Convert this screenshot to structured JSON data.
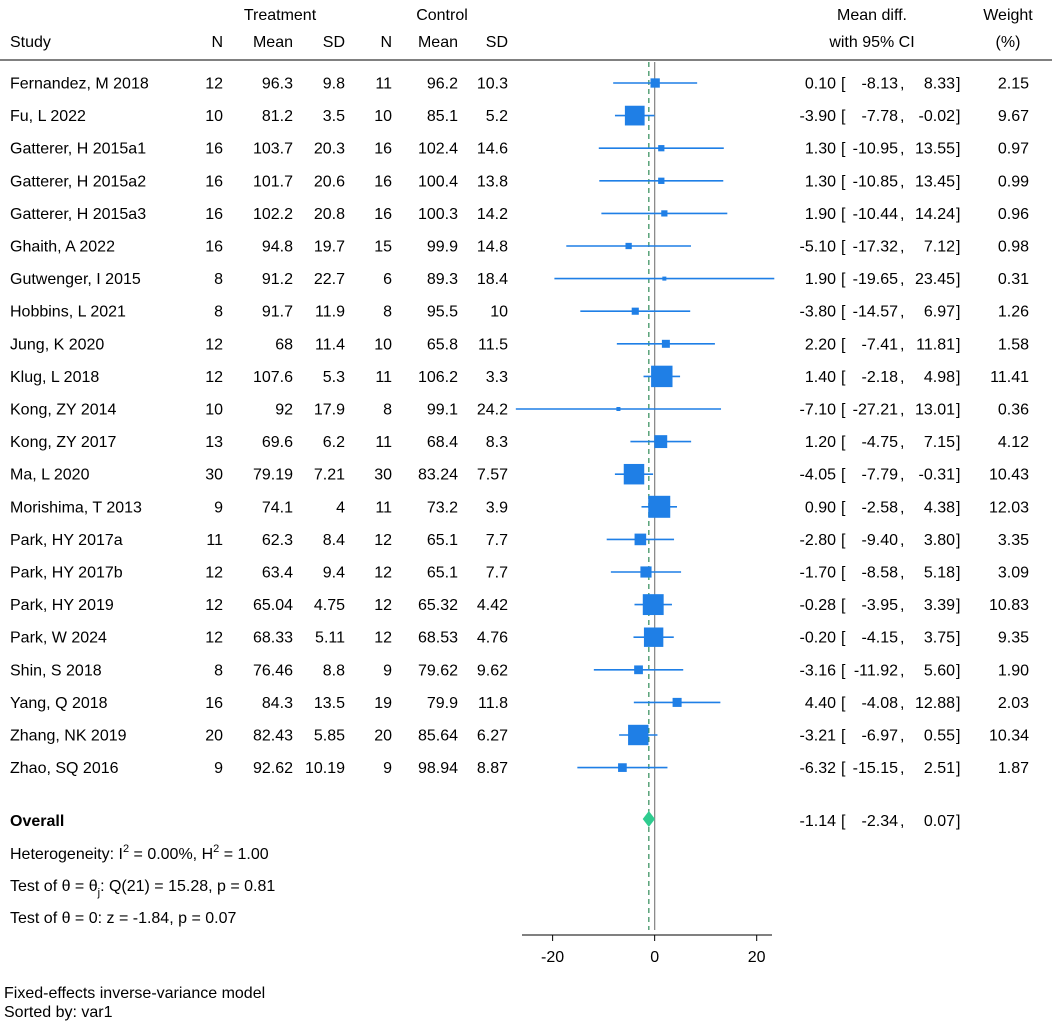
{
  "headers": {
    "treatment": "Treatment",
    "control": "Control",
    "study": "Study",
    "n": "N",
    "mean": "Mean",
    "sd": "SD",
    "effect_line1": "Mean diff.",
    "effect_line2": "with 95% CI",
    "weight_line1": "Weight",
    "weight_line2": "(%)"
  },
  "colors": {
    "marker": "#1f7fe6",
    "overall": "#2ecc8f",
    "ref_line": "#8c8c8c",
    "overall_line": "#2e8b57"
  },
  "chart_data": {
    "type": "forest",
    "xlim": [
      -26,
      23
    ],
    "xticks": [
      -20,
      0,
      20
    ],
    "xtick_labels": [
      "-20",
      "0",
      "20"
    ],
    "studies": [
      {
        "name": "Fernandez, M 2018",
        "tn": "12",
        "tmean": "96.3",
        "tsd": "9.8",
        "cn": "11",
        "cmean": "96.2",
        "csd": "10.3",
        "effect": 0.1,
        "lo": -8.13,
        "hi": 8.33,
        "effect_text": "0.10",
        "lo_text": "-8.13",
        "hi_text": "8.33",
        "weight": 2.15,
        "weight_text": "2.15"
      },
      {
        "name": "Fu, L 2022",
        "tn": "10",
        "tmean": "81.2",
        "tsd": "3.5",
        "cn": "10",
        "cmean": "85.1",
        "csd": "5.2",
        "effect": -3.9,
        "lo": -7.78,
        "hi": -0.02,
        "effect_text": "-3.90",
        "lo_text": "-7.78",
        "hi_text": "-0.02",
        "weight": 9.67,
        "weight_text": "9.67"
      },
      {
        "name": "Gatterer, H 2015a1",
        "tn": "16",
        "tmean": "103.7",
        "tsd": "20.3",
        "cn": "16",
        "cmean": "102.4",
        "csd": "14.6",
        "effect": 1.3,
        "lo": -10.95,
        "hi": 13.55,
        "effect_text": "1.30",
        "lo_text": "-10.95",
        "hi_text": "13.55",
        "weight": 0.97,
        "weight_text": "0.97"
      },
      {
        "name": "Gatterer, H 2015a2",
        "tn": "16",
        "tmean": "101.7",
        "tsd": "20.6",
        "cn": "16",
        "cmean": "100.4",
        "csd": "13.8",
        "effect": 1.3,
        "lo": -10.85,
        "hi": 13.45,
        "effect_text": "1.30",
        "lo_text": "-10.85",
        "hi_text": "13.45",
        "weight": 0.99,
        "weight_text": "0.99"
      },
      {
        "name": "Gatterer, H 2015a3",
        "tn": "16",
        "tmean": "102.2",
        "tsd": "20.8",
        "cn": "16",
        "cmean": "100.3",
        "csd": "14.2",
        "effect": 1.9,
        "lo": -10.44,
        "hi": 14.24,
        "effect_text": "1.90",
        "lo_text": "-10.44",
        "hi_text": "14.24",
        "weight": 0.96,
        "weight_text": "0.96"
      },
      {
        "name": "Ghaith, A 2022",
        "tn": "16",
        "tmean": "94.8",
        "tsd": "19.7",
        "cn": "15",
        "cmean": "99.9",
        "csd": "14.8",
        "effect": -5.1,
        "lo": -17.32,
        "hi": 7.12,
        "effect_text": "-5.10",
        "lo_text": "-17.32",
        "hi_text": "7.12",
        "weight": 0.98,
        "weight_text": "0.98"
      },
      {
        "name": "Gutwenger, I 2015",
        "tn": "8",
        "tmean": "91.2",
        "tsd": "22.7",
        "cn": "6",
        "cmean": "89.3",
        "csd": "18.4",
        "effect": 1.9,
        "lo": -19.65,
        "hi": 23.45,
        "effect_text": "1.90",
        "lo_text": "-19.65",
        "hi_text": "23.45",
        "weight": 0.31,
        "weight_text": "0.31"
      },
      {
        "name": "Hobbins, L 2021",
        "tn": "8",
        "tmean": "91.7",
        "tsd": "11.9",
        "cn": "8",
        "cmean": "95.5",
        "csd": "10",
        "effect": -3.8,
        "lo": -14.57,
        "hi": 6.97,
        "effect_text": "-3.80",
        "lo_text": "-14.57",
        "hi_text": "6.97",
        "weight": 1.26,
        "weight_text": "1.26"
      },
      {
        "name": "Jung, K 2020",
        "tn": "12",
        "tmean": "68",
        "tsd": "11.4",
        "cn": "10",
        "cmean": "65.8",
        "csd": "11.5",
        "effect": 2.2,
        "lo": -7.41,
        "hi": 11.81,
        "effect_text": "2.20",
        "lo_text": "-7.41",
        "hi_text": "11.81",
        "weight": 1.58,
        "weight_text": "1.58"
      },
      {
        "name": "Klug, L 2018",
        "tn": "12",
        "tmean": "107.6",
        "tsd": "5.3",
        "cn": "11",
        "cmean": "106.2",
        "csd": "3.3",
        "effect": 1.4,
        "lo": -2.18,
        "hi": 4.98,
        "effect_text": "1.40",
        "lo_text": "-2.18",
        "hi_text": "4.98",
        "weight": 11.41,
        "weight_text": "11.41"
      },
      {
        "name": "Kong, ZY 2014",
        "tn": "10",
        "tmean": "92",
        "tsd": "17.9",
        "cn": "8",
        "cmean": "99.1",
        "csd": "24.2",
        "effect": -7.1,
        "lo": -27.21,
        "hi": 13.01,
        "effect_text": "-7.10",
        "lo_text": "-27.21",
        "hi_text": "13.01",
        "weight": 0.36,
        "weight_text": "0.36"
      },
      {
        "name": "Kong, ZY 2017",
        "tn": "13",
        "tmean": "69.6",
        "tsd": "6.2",
        "cn": "11",
        "cmean": "68.4",
        "csd": "8.3",
        "effect": 1.2,
        "lo": -4.75,
        "hi": 7.15,
        "effect_text": "1.20",
        "lo_text": "-4.75",
        "hi_text": "7.15",
        "weight": 4.12,
        "weight_text": "4.12"
      },
      {
        "name": "Ma, L 2020",
        "tn": "30",
        "tmean": "79.19",
        "tsd": "7.21",
        "cn": "30",
        "cmean": "83.24",
        "csd": "7.57",
        "effect": -4.05,
        "lo": -7.79,
        "hi": -0.31,
        "effect_text": "-4.05",
        "lo_text": "-7.79",
        "hi_text": "-0.31",
        "weight": 10.43,
        "weight_text": "10.43"
      },
      {
        "name": "Morishima, T 2013",
        "tn": "9",
        "tmean": "74.1",
        "tsd": "4",
        "cn": "11",
        "cmean": "73.2",
        "csd": "3.9",
        "effect": 0.9,
        "lo": -2.58,
        "hi": 4.38,
        "effect_text": "0.90",
        "lo_text": "-2.58",
        "hi_text": "4.38",
        "weight": 12.03,
        "weight_text": "12.03"
      },
      {
        "name": "Park, HY 2017a",
        "tn": "11",
        "tmean": "62.3",
        "tsd": "8.4",
        "cn": "12",
        "cmean": "65.1",
        "csd": "7.7",
        "effect": -2.8,
        "lo": -9.4,
        "hi": 3.8,
        "effect_text": "-2.80",
        "lo_text": "-9.40",
        "hi_text": "3.80",
        "weight": 3.35,
        "weight_text": "3.35"
      },
      {
        "name": "Park, HY 2017b",
        "tn": "12",
        "tmean": "63.4",
        "tsd": "9.4",
        "cn": "12",
        "cmean": "65.1",
        "csd": "7.7",
        "effect": -1.7,
        "lo": -8.58,
        "hi": 5.18,
        "effect_text": "-1.70",
        "lo_text": "-8.58",
        "hi_text": "5.18",
        "weight": 3.09,
        "weight_text": "3.09"
      },
      {
        "name": "Park, HY 2019",
        "tn": "12",
        "tmean": "65.04",
        "tsd": "4.75",
        "cn": "12",
        "cmean": "65.32",
        "csd": "4.42",
        "effect": -0.28,
        "lo": -3.95,
        "hi": 3.39,
        "effect_text": "-0.28",
        "lo_text": "-3.95",
        "hi_text": "3.39",
        "weight": 10.83,
        "weight_text": "10.83"
      },
      {
        "name": "Park, W 2024",
        "tn": "12",
        "tmean": "68.33",
        "tsd": "5.11",
        "cn": "12",
        "cmean": "68.53",
        "csd": "4.76",
        "effect": -0.2,
        "lo": -4.15,
        "hi": 3.75,
        "effect_text": "-0.20",
        "lo_text": "-4.15",
        "hi_text": "3.75",
        "weight": 9.35,
        "weight_text": "9.35"
      },
      {
        "name": "Shin, S 2018",
        "tn": "8",
        "tmean": "76.46",
        "tsd": "8.8",
        "cn": "9",
        "cmean": "79.62",
        "csd": "9.62",
        "effect": -3.16,
        "lo": -11.92,
        "hi": 5.6,
        "effect_text": "-3.16",
        "lo_text": "-11.92",
        "hi_text": "5.60",
        "weight": 1.9,
        "weight_text": "1.90"
      },
      {
        "name": "Yang, Q 2018",
        "tn": "16",
        "tmean": "84.3",
        "tsd": "13.5",
        "cn": "19",
        "cmean": "79.9",
        "csd": "11.8",
        "effect": 4.4,
        "lo": -4.08,
        "hi": 12.88,
        "effect_text": "4.40",
        "lo_text": "-4.08",
        "hi_text": "12.88",
        "weight": 2.03,
        "weight_text": "2.03"
      },
      {
        "name": "Zhang, NK 2019",
        "tn": "20",
        "tmean": "82.43",
        "tsd": "5.85",
        "cn": "20",
        "cmean": "85.64",
        "csd": "6.27",
        "effect": -3.21,
        "lo": -6.97,
        "hi": 0.55,
        "effect_text": "-3.21",
        "lo_text": "-6.97",
        "hi_text": "0.55",
        "weight": 10.34,
        "weight_text": "10.34"
      },
      {
        "name": "Zhao, SQ 2016",
        "tn": "9",
        "tmean": "92.62",
        "tsd": "10.19",
        "cn": "9",
        "cmean": "98.94",
        "csd": "8.87",
        "effect": -6.32,
        "lo": -15.15,
        "hi": 2.51,
        "effect_text": "-6.32",
        "lo_text": "-15.15",
        "hi_text": "2.51",
        "weight": 1.87,
        "weight_text": "1.87"
      }
    ],
    "overall": {
      "label": "Overall",
      "effect": -1.14,
      "lo": -2.34,
      "hi": 0.07,
      "effect_text": "-1.14",
      "lo_text": "-2.34",
      "hi_text": "0.07"
    },
    "stats": {
      "heterogeneity": {
        "prefix": "Heterogeneity: I",
        "sup1": "2",
        "mid": " = 0.00%, H",
        "sup2": "2",
        "end": " = 1.00"
      },
      "test1": {
        "prefix": "Test of θ = θ",
        "sub": "j",
        "end": ": Q(21) = 15.28, p = 0.81"
      },
      "test2": "Test of θ = 0: z = -1.84, p = 0.07"
    }
  },
  "footer": {
    "model": "Fixed-effects inverse-variance model",
    "sorted": "Sorted by: var1"
  }
}
